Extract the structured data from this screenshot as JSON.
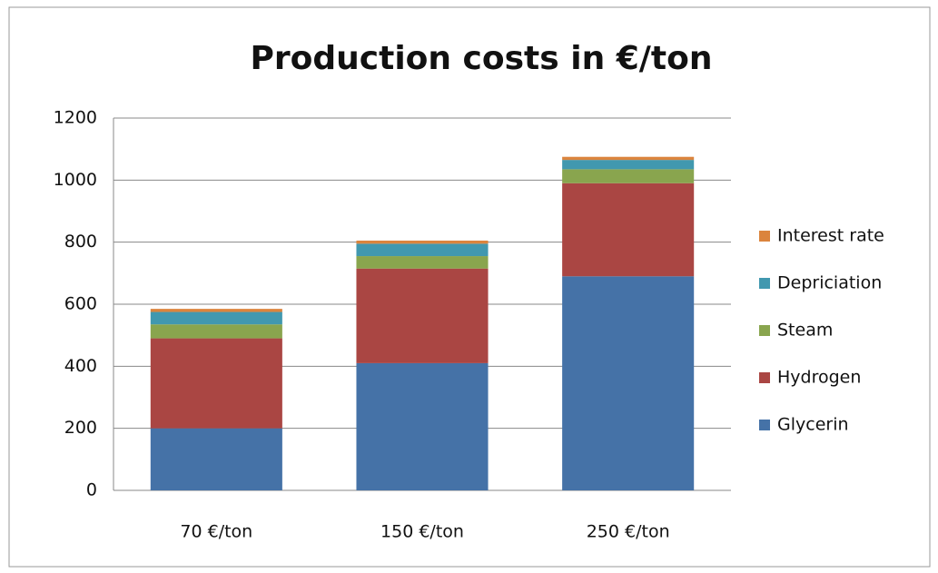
{
  "chart_data": {
    "type": "stacked_bar",
    "title": "Production costs in €/ton",
    "categories": [
      "70 €/ton",
      "150 €/ton",
      "250 €/ton"
    ],
    "series": [
      {
        "name": "Glycerin",
        "color": "#4572a7",
        "values": [
          200,
          410,
          690
        ]
      },
      {
        "name": "Hydrogen",
        "color": "#aa4643",
        "values": [
          290,
          305,
          300
        ]
      },
      {
        "name": "Steam",
        "color": "#89a54e",
        "values": [
          45,
          40,
          45
        ]
      },
      {
        "name": "Depriciation",
        "color": "#4198af",
        "values": [
          40,
          40,
          30
        ]
      },
      {
        "name": "Interest rate",
        "color": "#db843d",
        "values": [
          10,
          10,
          10
        ]
      }
    ],
    "ylim": [
      0,
      1200
    ],
    "yticks": [
      0,
      200,
      400,
      600,
      800,
      1000,
      1200
    ],
    "grid": true,
    "legend": "right"
  }
}
